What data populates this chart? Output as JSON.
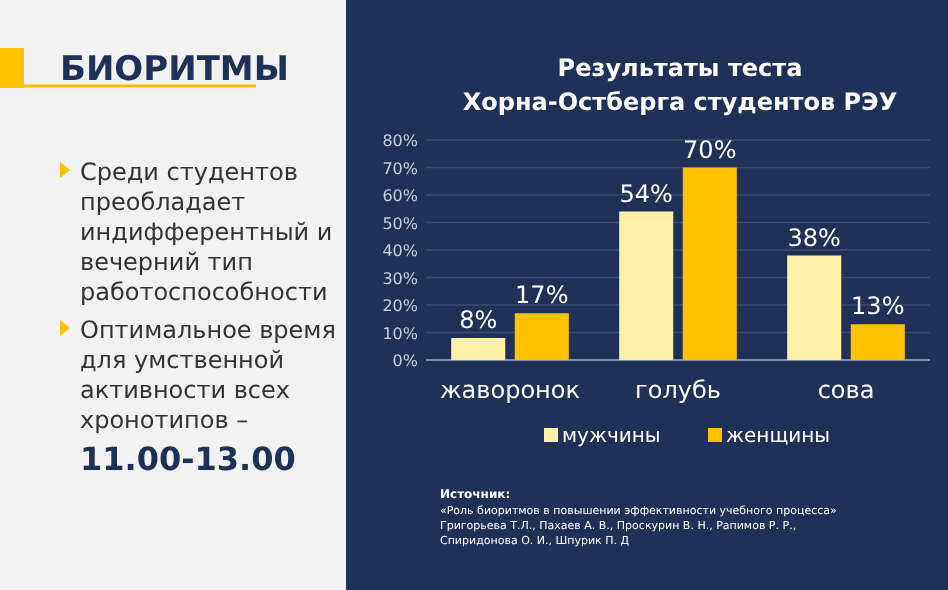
{
  "chart_data": {
    "type": "bar",
    "title": "Результаты теста Хорна-Остберга студентов РЭУ",
    "categories": [
      "жаворонок",
      "голубь",
      "сова"
    ],
    "series": [
      {
        "name": "мужчины",
        "color": "#fff2a8",
        "values": [
          8,
          54,
          38
        ]
      },
      {
        "name": "женщины",
        "color": "#ffc000",
        "values": [
          17,
          70,
          13
        ]
      }
    ],
    "ylim": [
      0,
      80
    ],
    "yticks": [
      {
        "value": 0,
        "label": "0%"
      },
      {
        "value": 10,
        "label": "10%"
      },
      {
        "value": 20,
        "label": "20%"
      },
      {
        "value": 30,
        "label": "30%"
      },
      {
        "value": 40,
        "label": "40%"
      },
      {
        "value": 50,
        "label": "50%"
      },
      {
        "value": 60,
        "label": "60%"
      },
      {
        "value": 70,
        "label": "70%"
      },
      {
        "value": 80,
        "label": "80%"
      }
    ],
    "value_labels": [
      [
        "8%",
        "54%",
        "38%"
      ],
      [
        "17%",
        "70%",
        "13%"
      ]
    ],
    "grid": "y",
    "legend": "bottom",
    "annotations": [
      "БИОРИТМЫ",
      "Среди студентов преобладает индифферентный и вечерний тип работоспособности",
      "Оптимальное время для умственной активности всех хронотипов –",
      "11.00-13.00",
      "Источник:",
      "«Роль биоритмов в повышении эффективности учебного процесса» Григорьева Т.Л., Пахаев А. В., Проскурин В. Н., Рапимов Р. Р., Спиридонова О. И., Шпурик П. Д"
    ]
  }
}
